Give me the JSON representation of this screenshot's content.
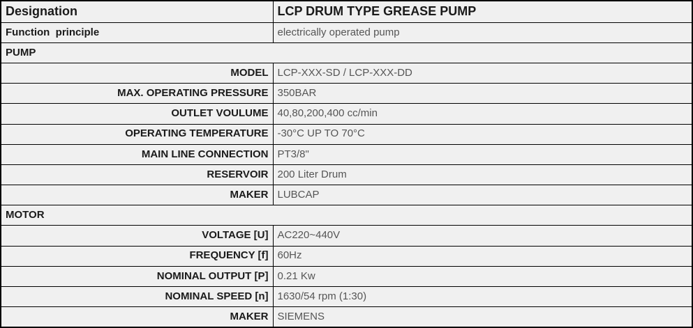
{
  "table": {
    "header": {
      "label": "Designation",
      "value": "LCP DRUM TYPE GREASE PUMP"
    },
    "subheader": {
      "label": "Function  principle",
      "value": "electrically operated pump"
    },
    "sections": [
      {
        "title": "PUMP",
        "rows": [
          {
            "label": "MODEL",
            "value": "LCP-XXX-SD / LCP-XXX-DD"
          },
          {
            "label": "MAX. OPERATING PRESSURE",
            "value": "350BAR"
          },
          {
            "label": "OUTLET VOULUME",
            "value": "40,80,200,400 cc/min"
          },
          {
            "label": "OPERATING TEMPERATURE",
            "value": "-30°C UP TO 70°C"
          },
          {
            "label": "MAIN LINE CONNECTION",
            "value": "PT3/8\""
          },
          {
            "label": "RESERVOIR",
            "value": "200 Liter Drum"
          },
          {
            "label": "MAKER",
            "value": "LUBCAP"
          }
        ]
      },
      {
        "title": "MOTOR",
        "rows": [
          {
            "label": "VOLTAGE [U]",
            "value": "AC220~440V"
          },
          {
            "label": "FREQUENCY [f]",
            "value": "60Hz"
          },
          {
            "label": "NOMINAL OUTPUT [P]",
            "value": "0.21 Kw"
          },
          {
            "label": "NOMINAL SPEED [n]",
            "value": "1630/54 rpm (1:30)"
          },
          {
            "label": "MAKER",
            "value": "SIEMENS"
          }
        ]
      }
    ],
    "colors": {
      "cell_bg": "#f0f0f0",
      "border": "#000000",
      "label_text": "#1a1a1a",
      "value_text": "#555555"
    }
  }
}
